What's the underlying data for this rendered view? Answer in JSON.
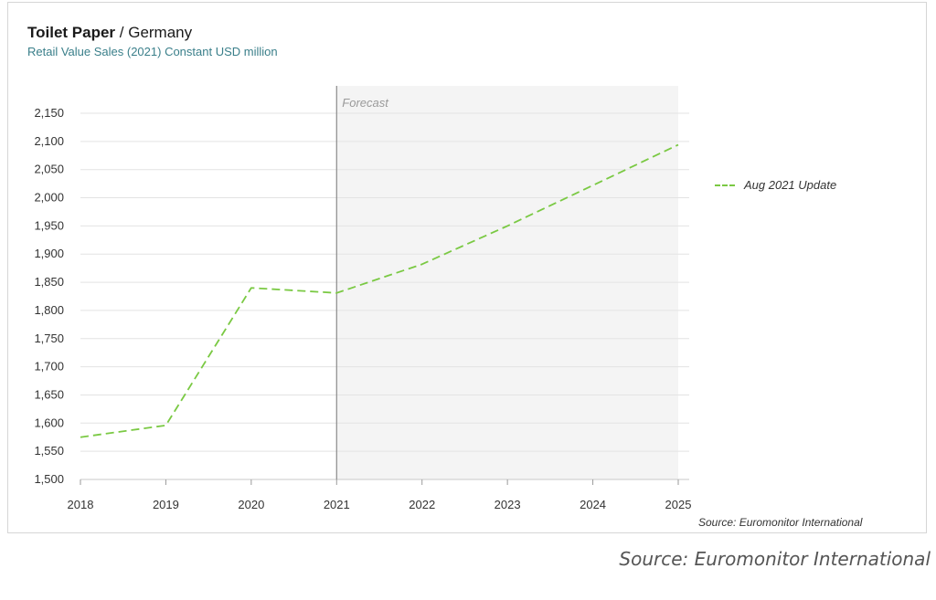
{
  "header": {
    "title_bold": "Toilet Paper",
    "title_rest": " / Germany",
    "subtitle": "Retail Value Sales (2021) Constant USD million"
  },
  "forecast_label": "Forecast",
  "source_inner": "Source: Euromonitor International",
  "source_outer": "Source: Euromonitor International",
  "colors": {
    "series": "#7ac943",
    "forecast_bg": "#f4f4f4",
    "grid": "#e3e3e3"
  },
  "chart_data": {
    "type": "line",
    "x": [
      "2018",
      "2019",
      "2020",
      "2021",
      "2022",
      "2023",
      "2024",
      "2025"
    ],
    "series": [
      {
        "name": "Aug 2021 Update",
        "values": [
          1575,
          1596,
          1840,
          1831,
          1882,
          1950,
          2022,
          2094
        ],
        "style": "dashed"
      }
    ],
    "yticks": [
      1500,
      1550,
      1600,
      1650,
      1700,
      1750,
      1800,
      1850,
      1900,
      1950,
      2000,
      2050,
      2100,
      2150
    ],
    "ytick_labels": [
      "1,500",
      "1,550",
      "1,600",
      "1,650",
      "1,700",
      "1,750",
      "1,800",
      "1,850",
      "1,900",
      "1,950",
      "2,000",
      "2,050",
      "2,100",
      "2,150"
    ],
    "ylim": [
      1500,
      2175
    ],
    "forecast_start": "2021",
    "legend_position": "right",
    "grid": true
  }
}
